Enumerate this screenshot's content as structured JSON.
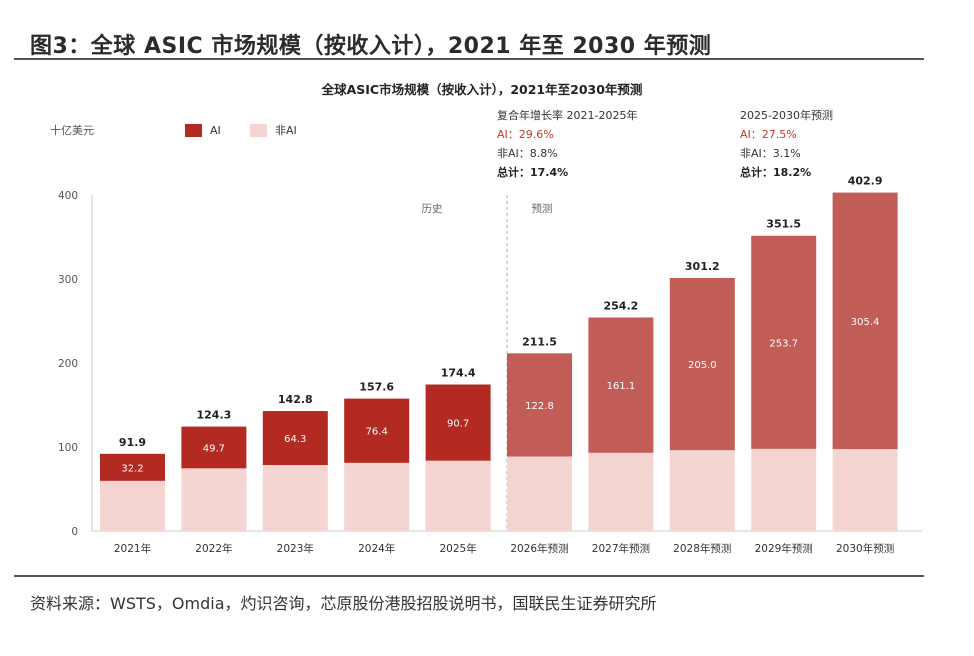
{
  "figure_title": "图3：全球 ASIC 市场规模（按收入计），2021 年至 2030 年预测",
  "source": "资料来源：WSTS，Omdia，灼识咨询，芯原股份港股招股说明书，国联民生证券研究所",
  "colors": {
    "ai": "#b22a22",
    "ai_forecast": "#c25c57",
    "non_ai": "#f5d5d2",
    "accent_text": "#c0392b"
  },
  "chart_data": {
    "type": "bar",
    "stacked": true,
    "title": "全球ASIC市场规模（按收入计），2021年至2030年预测",
    "unit_label": "十亿美元",
    "legend": [
      "AI",
      "非AI"
    ],
    "legend_placement": "top-left",
    "categories": [
      "2021年",
      "2022年",
      "2023年",
      "2024年",
      "2025年",
      "2026年预测",
      "2027年预测",
      "2028年预测",
      "2029年预测",
      "2030年预测"
    ],
    "series": [
      {
        "name": "AI",
        "values": [
          32.2,
          49.7,
          64.3,
          76.4,
          90.7,
          122.8,
          161.1,
          205.0,
          253.7,
          305.4
        ]
      },
      {
        "name": "非AI",
        "values": [
          59.7,
          74.6,
          78.5,
          81.2,
          83.7,
          88.7,
          93.1,
          96.2,
          97.8,
          97.5
        ]
      }
    ],
    "totals": [
      91.9,
      124.3,
      142.8,
      157.6,
      174.4,
      211.5,
      254.2,
      301.2,
      351.5,
      402.9
    ],
    "ylim": [
      0,
      400
    ],
    "yticks": [
      0,
      100,
      200,
      300,
      400
    ],
    "grid": false,
    "section_labels": [
      "历史",
      "预测"
    ],
    "cagr_boxes": [
      {
        "title": "复合年增长率 2021-2025年",
        "ai": "AI：29.6%",
        "non_ai": "非AI：8.8%",
        "total": "总计：17.4%"
      },
      {
        "title": "2025-2030年预测",
        "ai": "AI：27.5%",
        "non_ai": "非AI：3.1%",
        "total": "总计：18.2%"
      }
    ]
  }
}
